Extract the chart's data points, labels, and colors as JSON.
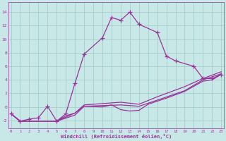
{
  "xlabel": "Windchill (Refroidissement éolien,°C)",
  "bg_color": "#c8e8e8",
  "grid_color": "#a0c8c8",
  "line_color": "#993399",
  "xlim": [
    -0.3,
    23.3
  ],
  "ylim": [
    -3.2,
    15.5
  ],
  "yticks": [
    -2,
    0,
    2,
    4,
    6,
    8,
    10,
    12,
    14
  ],
  "xticks": [
    0,
    1,
    2,
    3,
    4,
    5,
    6,
    7,
    8,
    9,
    10,
    11,
    12,
    13,
    14,
    15,
    16,
    17,
    18,
    19,
    20,
    21,
    22,
    23
  ],
  "main_line": {
    "x": [
      0,
      1,
      2,
      3,
      4,
      5,
      6,
      7,
      8,
      10,
      11,
      12,
      13,
      14,
      16,
      17,
      18,
      20,
      21,
      22,
      23
    ],
    "y": [
      -1.0,
      -2.1,
      -1.8,
      -1.6,
      0.1,
      -2.1,
      -1.0,
      3.5,
      7.8,
      10.2,
      13.2,
      12.8,
      14.0,
      12.2,
      11.0,
      7.5,
      6.8,
      6.0,
      4.2,
      4.2,
      4.8
    ]
  },
  "smooth_lines": [
    {
      "x": [
        0,
        1,
        5,
        6,
        7,
        8,
        10,
        11,
        12,
        13,
        14,
        15,
        17,
        19,
        21,
        22,
        23
      ],
      "y": [
        -1.0,
        -2.1,
        -2.1,
        -1.3,
        -0.9,
        0.1,
        0.0,
        0.3,
        -0.4,
        -0.6,
        -0.5,
        0.4,
        1.3,
        2.3,
        3.8,
        4.0,
        4.8
      ]
    },
    {
      "x": [
        0,
        1,
        5,
        7,
        8,
        10,
        12,
        14,
        16,
        19,
        21,
        23
      ],
      "y": [
        -1.0,
        -2.1,
        -2.1,
        -1.2,
        0.1,
        0.2,
        0.3,
        0.1,
        1.0,
        2.4,
        4.0,
        4.9
      ]
    },
    {
      "x": [
        0,
        1,
        5,
        7,
        8,
        10,
        12,
        14,
        16,
        19,
        21,
        23
      ],
      "y": [
        -1.0,
        -2.1,
        -2.1,
        -0.9,
        0.3,
        0.5,
        0.7,
        0.4,
        1.5,
        3.0,
        4.2,
        5.2
      ]
    }
  ]
}
